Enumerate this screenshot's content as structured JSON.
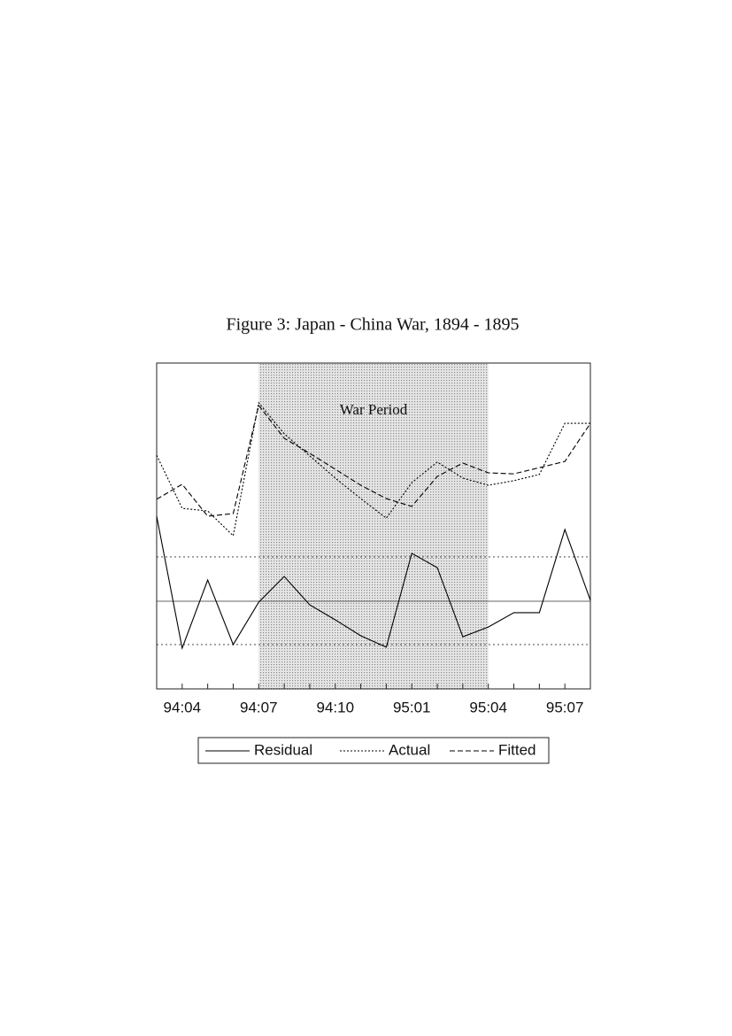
{
  "chart_data": {
    "type": "line",
    "title": "Figure 3: Japan - China War, 1894 - 1895",
    "categories": [
      null,
      "94:04",
      null,
      null,
      "94:07",
      null,
      null,
      "94:10",
      null,
      null,
      "95:01",
      null,
      null,
      "95:04",
      null,
      null,
      "95:07",
      null
    ],
    "series": [
      {
        "name": "Residual",
        "color": "#000000",
        "style": "solid",
        "values": [
          53.0,
          12.5,
          33.4,
          13.6,
          26.6,
          34.5,
          25.8,
          21.2,
          16.3,
          12.8,
          41.6,
          37.2,
          16.0,
          19.0,
          23.4,
          23.4,
          48.9,
          27.2
        ]
      },
      {
        "name": "Actual",
        "color": "#000000",
        "style": "dotted",
        "values": [
          71.7,
          55.4,
          54.6,
          47.0,
          87.8,
          78.3,
          71.5,
          64.7,
          58.4,
          52.4,
          63.3,
          69.6,
          64.7,
          62.5,
          63.9,
          65.8,
          81.5,
          81.5
        ]
      },
      {
        "name": "Fitted",
        "color": "#000000",
        "style": "dashed",
        "values": [
          58.2,
          62.8,
          53.0,
          53.8,
          87.0,
          76.9,
          72.3,
          67.4,
          62.5,
          58.4,
          56.0,
          65.2,
          69.3,
          66.3,
          66.0,
          67.9,
          69.8,
          81.5
        ]
      }
    ],
    "hlines": [
      26.9,
      40.5,
      13.6
    ],
    "ylim": [
      0,
      100
    ],
    "shade": {
      "label": "War Period",
      "from": "94:07",
      "to": "95:04"
    },
    "legend": "bottom"
  }
}
